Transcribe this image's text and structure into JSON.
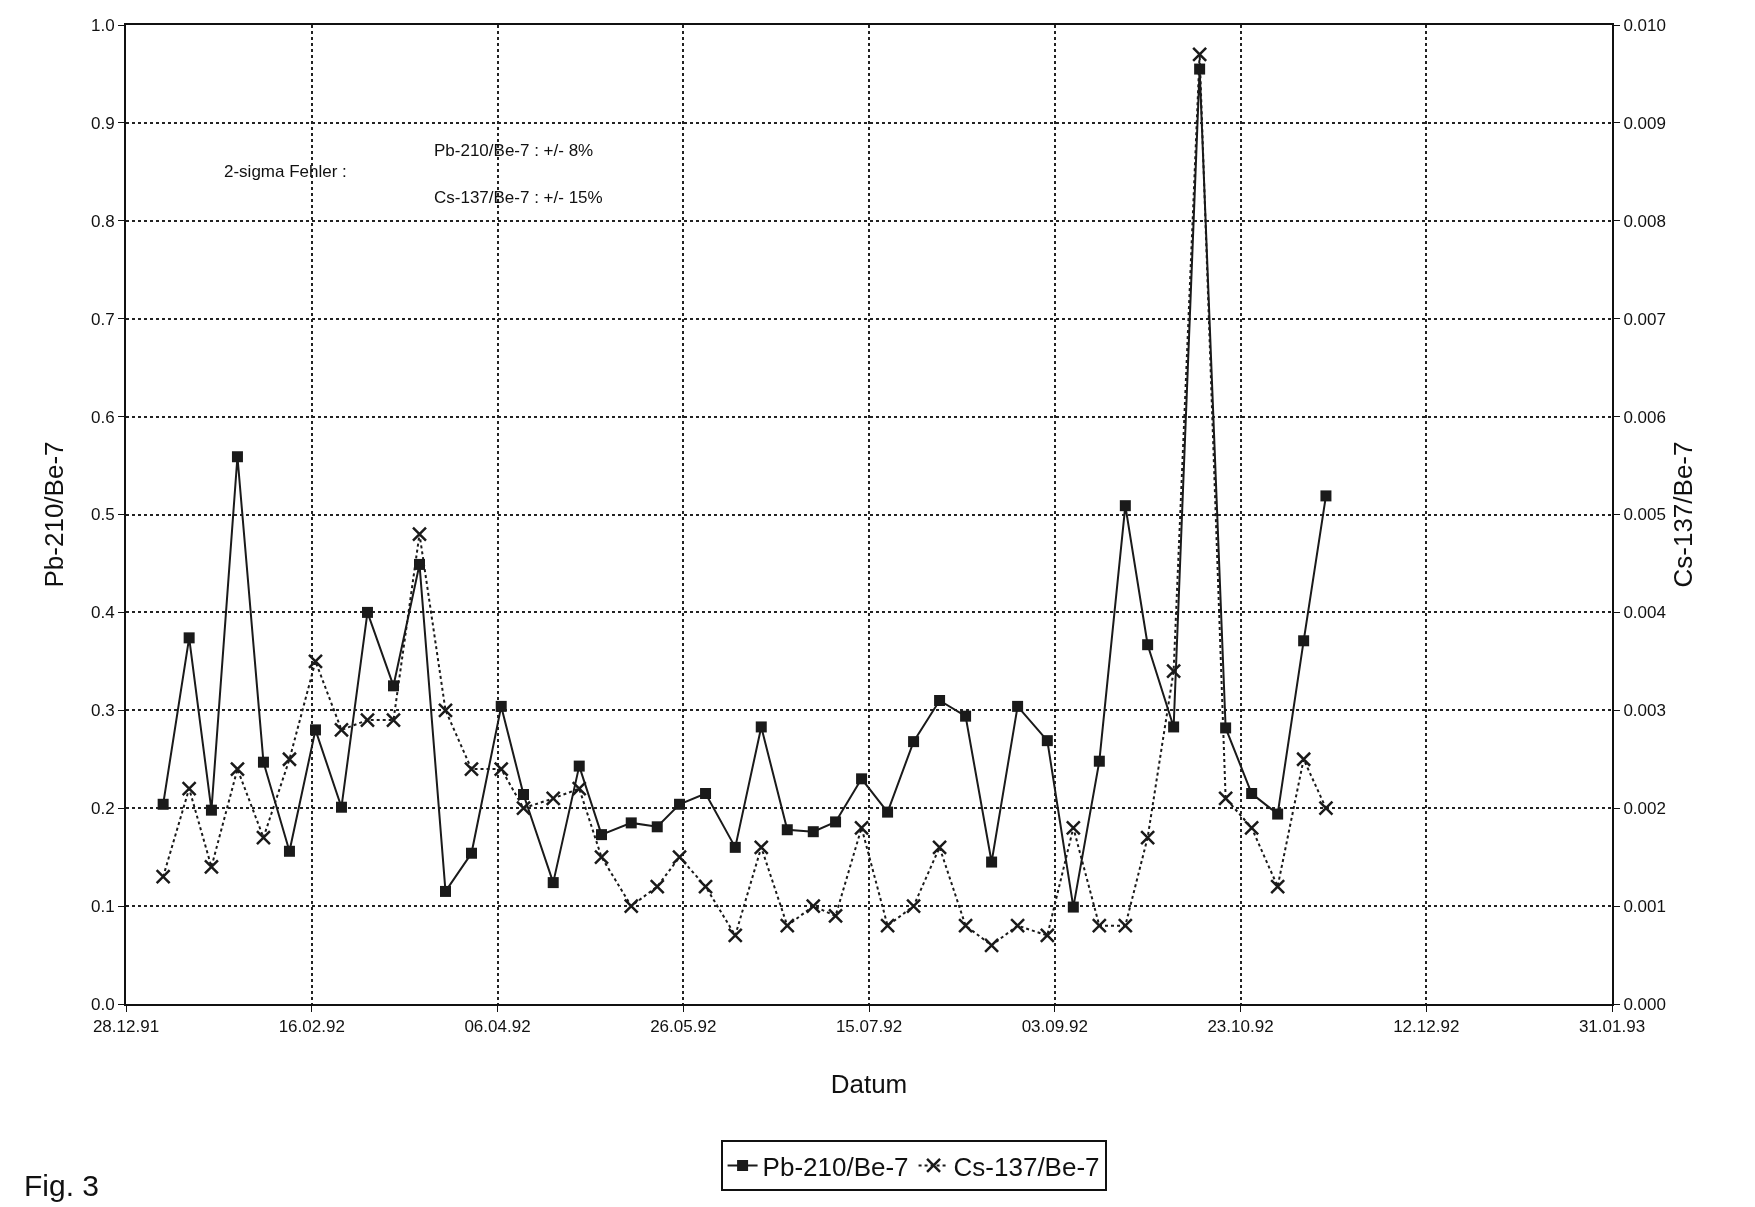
{
  "chart_data": {
    "type": "line",
    "xlabel": "Datum",
    "ylabel": "Pb-210/Be-7",
    "y2label": "Cs-137/Be-7",
    "x": [
      "1992-01-07",
      "1992-01-14",
      "1992-01-20",
      "1992-01-27",
      "1992-02-03",
      "1992-02-10",
      "1992-02-17",
      "1992-02-24",
      "1992-03-02",
      "1992-03-09",
      "1992-03-16",
      "1992-03-23",
      "1992-03-30",
      "1992-04-07",
      "1992-04-13",
      "1992-04-21",
      "1992-04-28",
      "1992-05-04",
      "1992-05-12",
      "1992-05-19",
      "1992-05-25",
      "1992-06-01",
      "1992-06-09",
      "1992-06-16",
      "1992-06-23",
      "1992-06-30",
      "1992-07-06",
      "1992-07-13",
      "1992-07-20",
      "1992-07-27",
      "1992-08-03",
      "1992-08-10",
      "1992-08-17",
      "1992-08-24",
      "1992-09-01",
      "1992-09-08",
      "1992-09-15",
      "1992-09-22",
      "1992-09-28",
      "1992-10-05",
      "1992-10-12",
      "1992-10-19",
      "1992-10-26",
      "1992-11-02",
      "1992-11-09",
      "1992-11-15"
    ],
    "series": [
      {
        "name": "Pb-210/Be-7",
        "color": "#1a1a1a",
        "marker": "square",
        "line_style": "solid",
        "values": [
          0.204,
          0.374,
          0.198,
          0.559,
          0.247,
          0.156,
          0.28,
          0.201,
          0.4,
          0.325,
          0.449,
          0.115,
          0.154,
          0.304,
          0.214,
          0.124,
          0.243,
          0.173,
          0.185,
          0.181,
          0.204,
          0.215,
          0.16,
          0.283,
          0.178,
          0.176,
          0.186,
          0.23,
          0.196,
          0.268,
          0.31,
          0.294,
          0.145,
          0.304,
          0.269,
          0.099,
          0.248,
          0.509,
          0.367,
          0.283,
          0.955,
          0.282,
          0.215,
          0.194,
          0.371,
          0.519
        ]
      },
      {
        "name": "Cs-137/Be-7",
        "color": "#1a1a1a",
        "marker": "cross",
        "line_style": "dotted",
        "axis": "y2",
        "values": [
          0.0013,
          0.0022,
          0.0014,
          0.0024,
          0.0017,
          0.0025,
          0.0035,
          0.0028,
          0.0029,
          0.0029,
          0.0048,
          0.003,
          0.0024,
          0.0024,
          0.002,
          0.0021,
          0.0022,
          0.0015,
          0.001,
          0.0012,
          0.0015,
          0.0012,
          0.0007,
          0.0016,
          0.0008,
          0.001,
          0.0009,
          0.0018,
          0.0008,
          0.001,
          0.0016,
          0.0008,
          0.0006,
          0.0008,
          0.0007,
          0.0018,
          0.0008,
          0.0008,
          0.0017,
          0.0034,
          0.0097,
          0.0021,
          0.0018,
          0.0012,
          0.0025,
          0.002
        ]
      }
    ],
    "xlim": [
      "1991-12-28",
      "1993-01-31"
    ],
    "xticks": [
      {
        "value": "1991-12-28",
        "label": "28.12.91"
      },
      {
        "value": "1992-02-16",
        "label": "16.02.92"
      },
      {
        "value": "1992-04-06",
        "label": "06.04.92"
      },
      {
        "value": "1992-05-26",
        "label": "26.05.92"
      },
      {
        "value": "1992-07-15",
        "label": "15.07.92"
      },
      {
        "value": "1992-09-03",
        "label": "03.09.92"
      },
      {
        "value": "1992-10-23",
        "label": "23.10.92"
      },
      {
        "value": "1992-12-12",
        "label": "12.12.92"
      },
      {
        "value": "1993-01-31",
        "label": "31.01.93"
      }
    ],
    "ylim": [
      0,
      1
    ],
    "yticks": [
      {
        "value": 0,
        "label": "0.0"
      },
      0.1,
      0.2,
      0.3,
      0.4,
      0.5,
      0.6,
      0.7,
      0.8,
      0.9,
      {
        "value": 1,
        "label": "1.0"
      }
    ],
    "y2lim": [
      0,
      0.01
    ],
    "y2ticks": [
      {
        "value": 0,
        "label": "0.000"
      },
      0.001,
      0.002,
      0.003,
      0.004,
      0.005,
      0.006,
      0.007,
      0.008,
      0.009,
      {
        "value": 0.01,
        "label": "0.010"
      }
    ],
    "grid": true,
    "legend": "bottom",
    "annotations": [
      "2-sigma Fehler :",
      "Pb-210/Be-7 : +/- 8%",
      "Cs-137/Be-7 : +/- 15%",
      "Fig. 3"
    ]
  }
}
